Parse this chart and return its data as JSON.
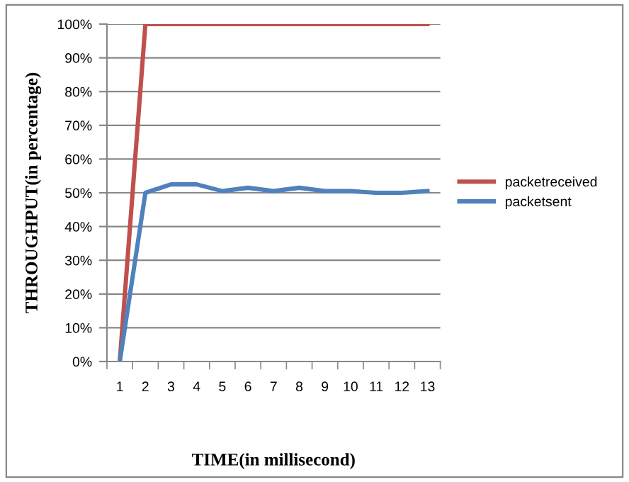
{
  "chart_data": {
    "type": "line",
    "xlabel": "TIME(in millisecond)",
    "ylabel": "THROUGHPUT(in percentage)",
    "categories": [
      "1",
      "2",
      "3",
      "4",
      "5",
      "6",
      "7",
      "8",
      "9",
      "10",
      "11",
      "12",
      "13"
    ],
    "series": [
      {
        "name": "packetreceived",
        "color": "#c0504d",
        "values": [
          0,
          100,
          100,
          100,
          100,
          100,
          100,
          100,
          100,
          100,
          100,
          100,
          100
        ]
      },
      {
        "name": "packetsent",
        "color": "#4f81bd",
        "values": [
          0,
          50,
          52.5,
          52.5,
          50.5,
          51.5,
          50.5,
          51.5,
          50.5,
          50.5,
          50,
          50,
          50.5
        ]
      }
    ],
    "ylim": [
      0,
      100
    ],
    "yticks": [
      {
        "value": 0,
        "label": "0%"
      },
      {
        "value": 10,
        "label": "10%"
      },
      {
        "value": 20,
        "label": "20%"
      },
      {
        "value": 30,
        "label": "30%"
      },
      {
        "value": 40,
        "label": "40%"
      },
      {
        "value": 50,
        "label": "50%"
      },
      {
        "value": 60,
        "label": "60%"
      },
      {
        "value": 70,
        "label": "70%"
      },
      {
        "value": 80,
        "label": "80%"
      },
      {
        "value": 90,
        "label": "90%"
      },
      {
        "value": 100,
        "label": "100%"
      }
    ],
    "grid": "y",
    "legend": "right",
    "marker": "none",
    "line_style": "solid"
  }
}
